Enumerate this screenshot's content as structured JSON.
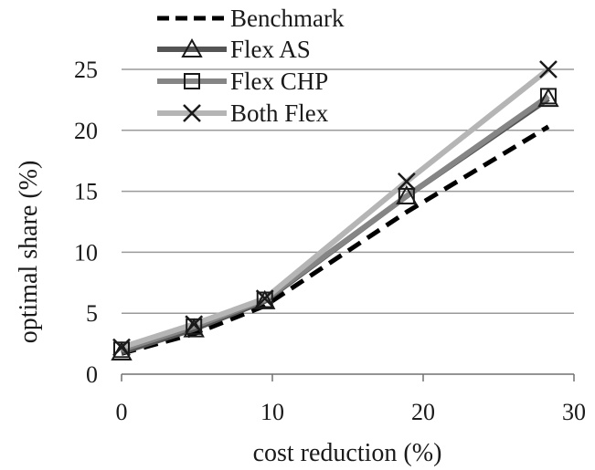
{
  "chart_data": {
    "type": "line",
    "xlabel": "cost reduction (%)",
    "ylabel": "optimal share (%)",
    "xlim": [
      0,
      30
    ],
    "ylim": [
      0,
      25
    ],
    "x_ticks": [
      "0",
      "10",
      "20",
      "30"
    ],
    "y_ticks": [
      "0",
      "5",
      "10",
      "15",
      "20",
      "25"
    ],
    "grid": "horizontal",
    "legend_position": "top-left",
    "series": [
      {
        "name": "Benchmark",
        "color": "#000000",
        "style": "dashed",
        "marker": "none",
        "points": [
          [
            0,
            1.7
          ],
          [
            4.8,
            3.3
          ],
          [
            9.5,
            5.6
          ],
          [
            18.9,
            13.3
          ],
          [
            28.3,
            20.3
          ]
        ]
      },
      {
        "name": "Flex AS",
        "color": "#555555",
        "style": "solid",
        "marker": "triangle",
        "points": [
          [
            0,
            1.8
          ],
          [
            4.8,
            3.7
          ],
          [
            9.5,
            6.0
          ],
          [
            18.9,
            14.6
          ],
          [
            28.3,
            22.6
          ]
        ]
      },
      {
        "name": "Flex CHP",
        "color": "#858585",
        "style": "solid",
        "marker": "square",
        "points": [
          [
            0,
            2.0
          ],
          [
            4.8,
            3.9
          ],
          [
            9.5,
            6.1
          ],
          [
            18.9,
            14.6
          ],
          [
            28.3,
            22.8
          ]
        ]
      },
      {
        "name": "Both Flex",
        "color": "#b5b5b5",
        "style": "solid",
        "marker": "x",
        "points": [
          [
            0,
            2.2
          ],
          [
            4.8,
            4.1
          ],
          [
            9.5,
            6.2
          ],
          [
            18.9,
            15.8
          ],
          [
            28.3,
            25.0
          ]
        ]
      }
    ]
  }
}
